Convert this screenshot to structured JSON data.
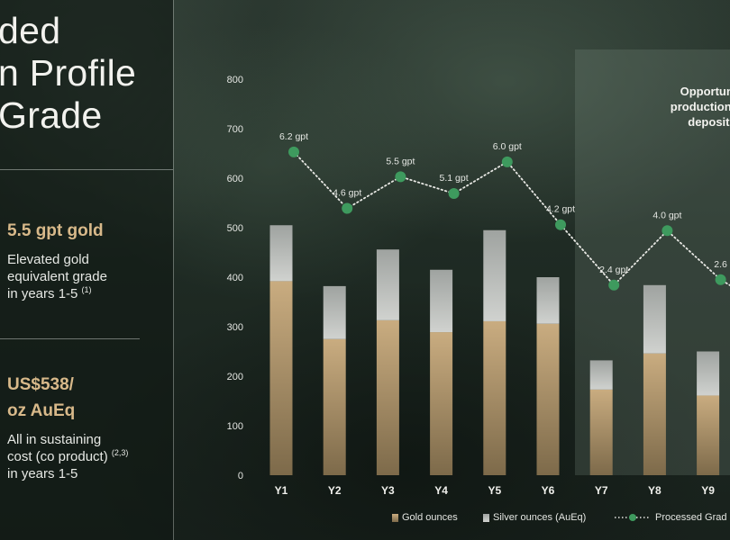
{
  "title": {
    "lines": [
      "ded",
      "n Profile",
      "Grade"
    ]
  },
  "stats": [
    {
      "value": "5.5 gpt gold",
      "desc_lines": [
        "Elevated gold",
        "equivalent grade",
        "in years 1-5"
      ],
      "note": "(1)"
    },
    {
      "value_lines": [
        "US$538/",
        "oz AuEq"
      ],
      "desc_lines": [
        "All in sustaining",
        "cost (co product)",
        "in years 1-5"
      ],
      "note": "(2,3)"
    }
  ],
  "opportunity": {
    "lines": [
      "Opportuniti",
      "production pro",
      "deposits"
    ]
  },
  "legend": {
    "gold": "Gold ounces",
    "silver": "Silver ounces (AuEq)",
    "grade": "Processed Grad"
  },
  "colors": {
    "gold_top": "#c9ac80",
    "gold_bottom": "#7d6a4a",
    "silver_top": "#9fa3a0",
    "silver_bottom": "#d0d2cf",
    "grade": "#3e9a5e",
    "axis_text": "#e4e6e2"
  },
  "chart_data": {
    "type": "bar",
    "stacked": true,
    "categories": [
      "Y1",
      "Y2",
      "Y3",
      "Y4",
      "Y5",
      "Y6",
      "Y7",
      "Y8",
      "Y9"
    ],
    "series": [
      {
        "name": "Gold ounces",
        "values": [
          392,
          275,
          313,
          289,
          311,
          306,
          173,
          246,
          161
        ]
      },
      {
        "name": "Silver ounces (AuEq)",
        "values": [
          113,
          107,
          143,
          126,
          184,
          94,
          59,
          138,
          89
        ]
      }
    ],
    "line_series": {
      "name": "Processed Grad",
      "values": [
        653,
        539,
        603,
        569,
        633,
        506,
        384,
        494,
        395
      ],
      "labels": [
        "6.2 gpt",
        "4.6 gpt",
        "5.5 gpt",
        "5.1 gpt",
        "6.0 gpt",
        "4.2 gpt",
        "2.4 gpt",
        "4.0 gpt",
        "2.6"
      ]
    },
    "yticks": [
      "0",
      "100",
      "200",
      "300",
      "400",
      "500",
      "600",
      "700",
      "800"
    ],
    "ylim": [
      0,
      800
    ],
    "grid": false
  }
}
